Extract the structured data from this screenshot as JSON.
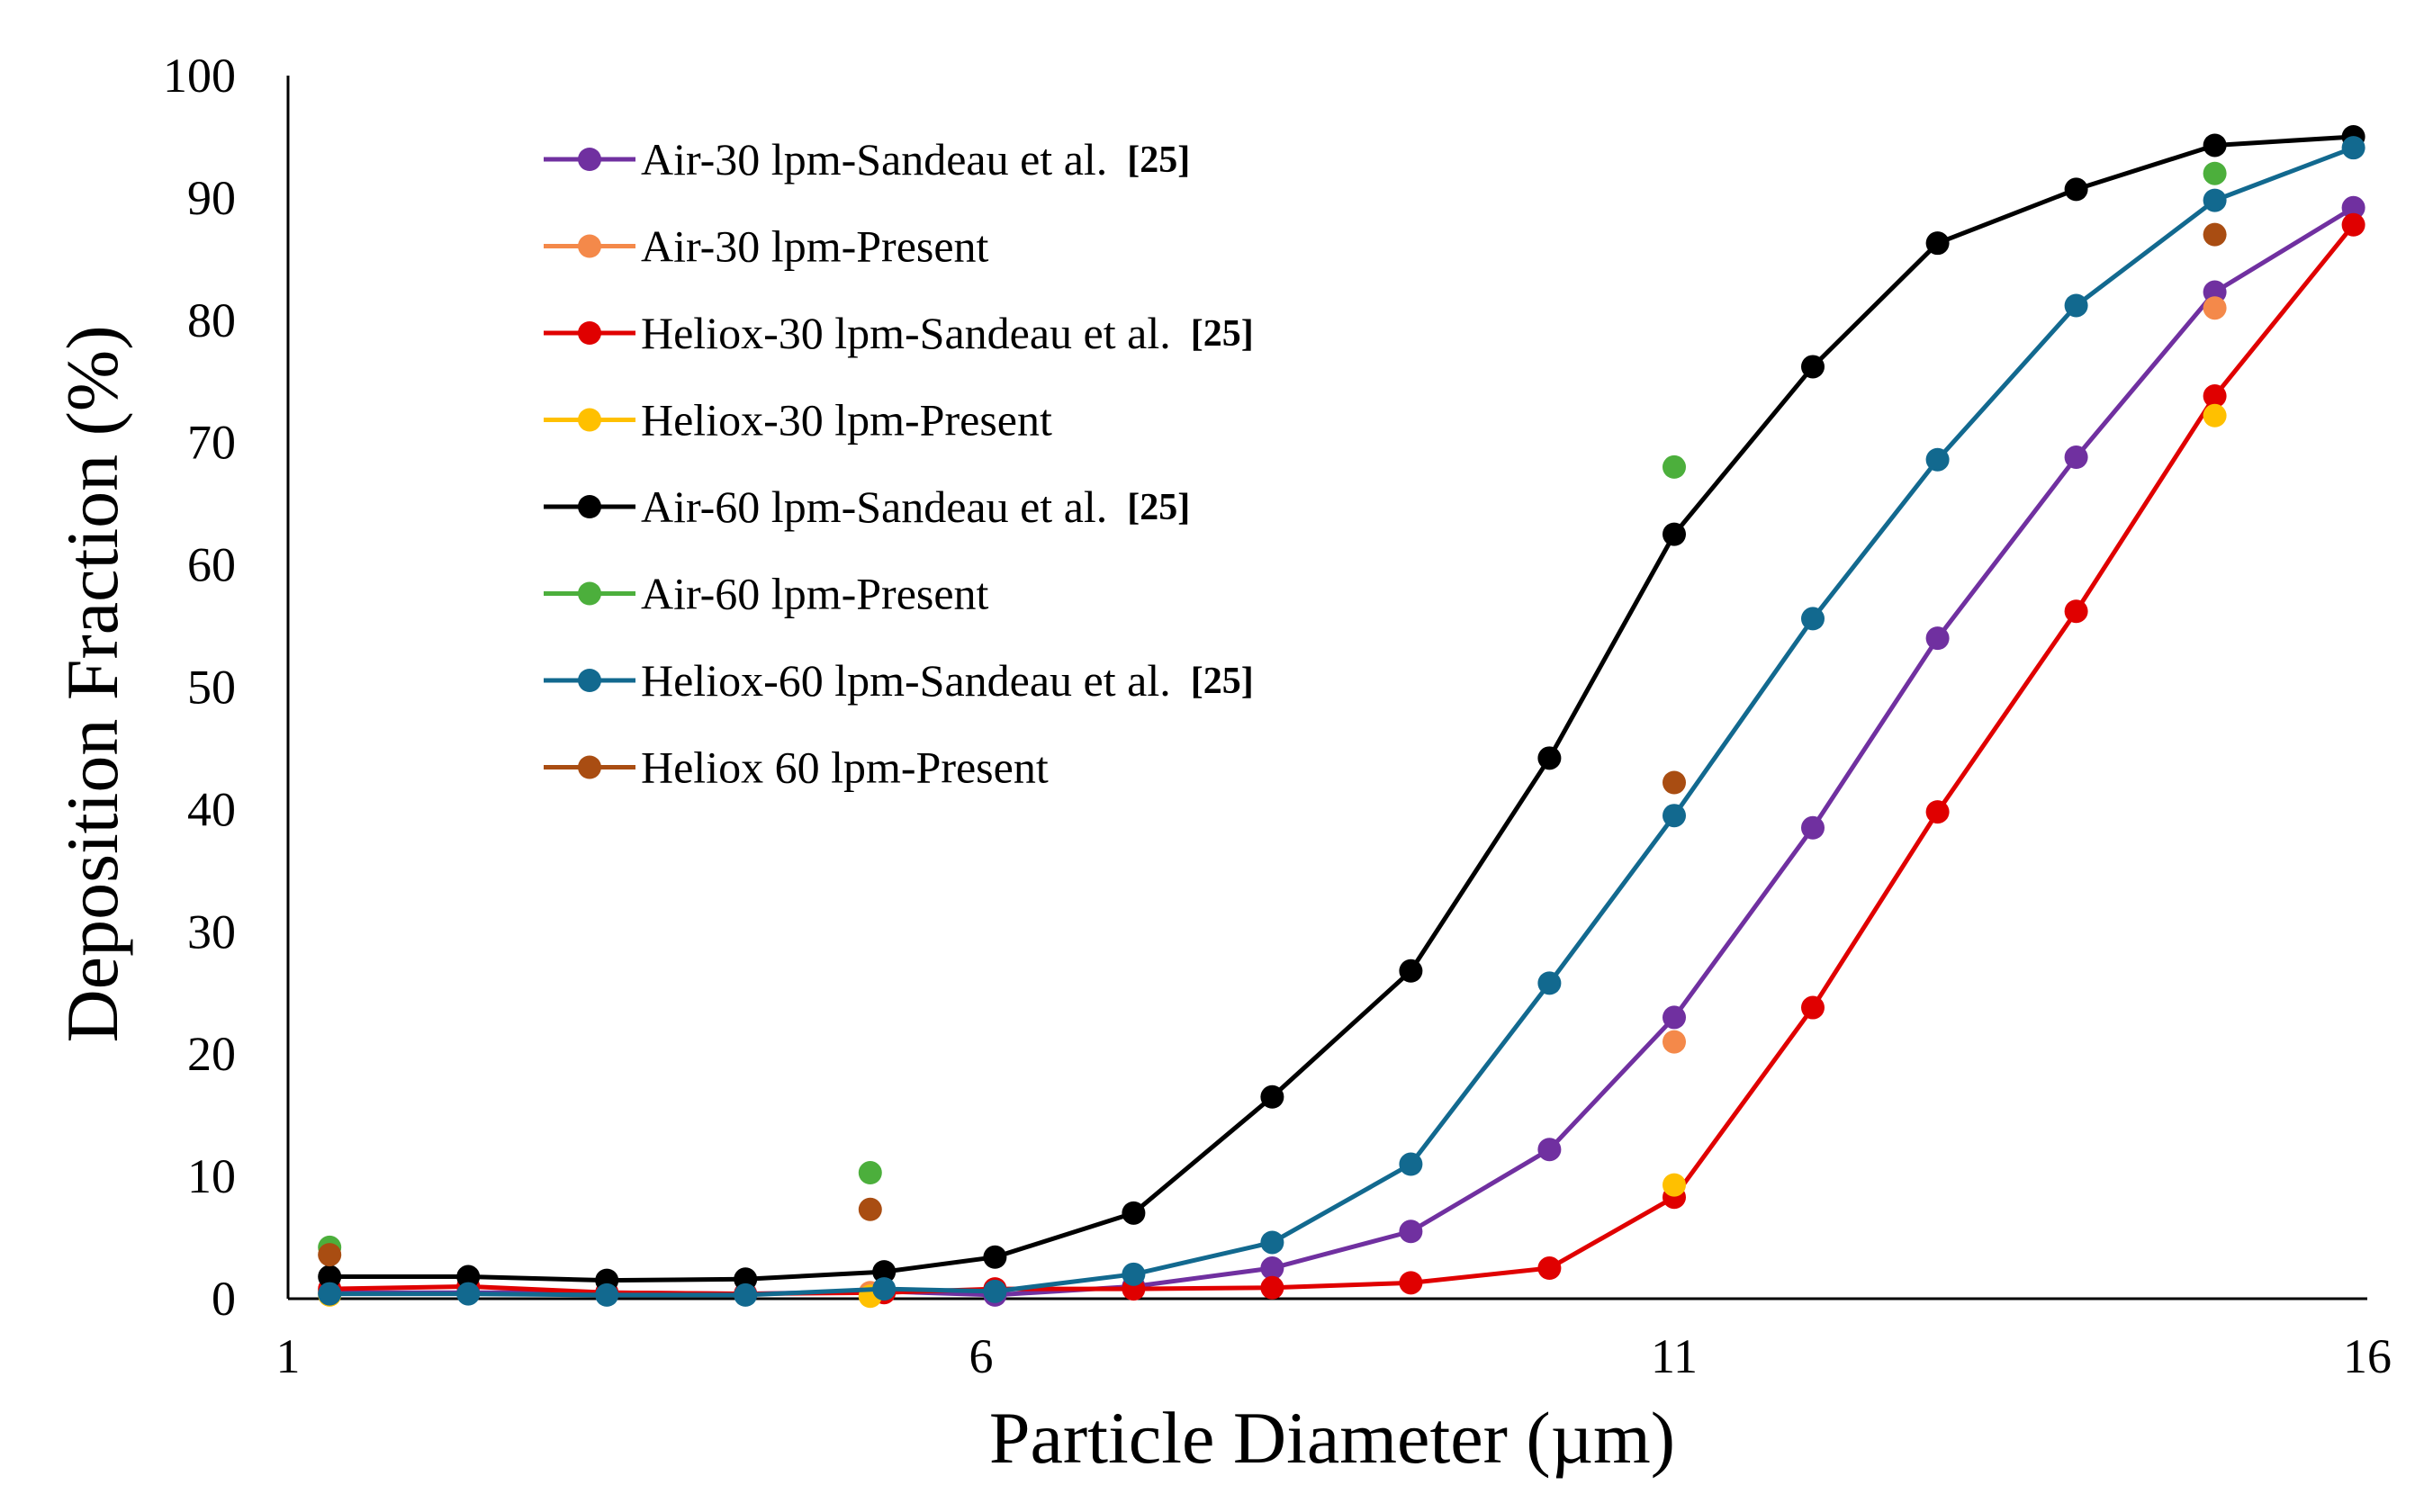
{
  "chart_data": {
    "type": "line",
    "title": "",
    "xlabel": "Particle Diameter (µm)",
    "ylabel": "Deposition Fraction (%)",
    "xlim": [
      1,
      16
    ],
    "ylim": [
      0,
      100
    ],
    "xticks": [
      1,
      6,
      11,
      16
    ],
    "yticks": [
      0,
      10,
      20,
      30,
      40,
      50,
      60,
      70,
      80,
      90,
      100
    ],
    "legend_position": "upper-left",
    "series": [
      {
        "name": "Air-30 lpm-Sandeau et al.",
        "ref": "[25]",
        "color": "#7030a0",
        "style": "line-marker",
        "x": [
          1.3,
          2.3,
          3.3,
          4.3,
          5.3,
          6.1,
          7.1,
          8.1,
          9.1,
          10.1,
          11.0,
          12.0,
          12.9,
          13.9,
          14.9,
          15.9
        ],
        "y": [
          0.5,
          0.5,
          0.5,
          0.4,
          0.6,
          0.3,
          1.0,
          2.5,
          5.5,
          12.2,
          23.0,
          38.5,
          54.0,
          68.8,
          82.3,
          89.2
        ]
      },
      {
        "name": "Air-30 lpm-Present",
        "ref": "",
        "color": "#f4894a",
        "style": "marker",
        "x": [
          1.3,
          5.2,
          11.0,
          14.9
        ],
        "y": [
          0.6,
          0.5,
          21.0,
          81.0
        ]
      },
      {
        "name": "Heliox-30 lpm-Sandeau et al.",
        "ref": "[25]",
        "color": "#e00000",
        "style": "line-marker",
        "x": [
          1.3,
          2.3,
          3.3,
          4.3,
          5.3,
          6.1,
          7.1,
          8.1,
          9.1,
          10.1,
          11.0,
          12.0,
          12.9,
          13.9,
          14.9,
          15.9
        ],
        "y": [
          0.8,
          1.0,
          0.5,
          0.4,
          0.5,
          0.8,
          0.8,
          0.9,
          1.3,
          2.5,
          8.3,
          23.8,
          39.8,
          56.2,
          73.8,
          87.8
        ]
      },
      {
        "name": "Heliox-30 lpm-Present",
        "ref": "",
        "color": "#ffc000",
        "style": "marker",
        "x": [
          1.3,
          5.2,
          11.0,
          14.9
        ],
        "y": [
          0.3,
          0.2,
          9.3,
          72.2
        ]
      },
      {
        "name": "Air-60 lpm-Sandeau et al.",
        "ref": "[25]",
        "color": "#000000",
        "style": "line-marker",
        "x": [
          1.3,
          2.3,
          3.3,
          4.3,
          5.3,
          6.1,
          7.1,
          8.1,
          9.1,
          10.1,
          11.0,
          12.0,
          12.9,
          13.9,
          14.9,
          15.9
        ],
        "y": [
          1.8,
          1.8,
          1.5,
          1.6,
          2.2,
          3.4,
          7.0,
          16.5,
          26.8,
          44.2,
          62.5,
          76.2,
          86.3,
          90.7,
          94.3,
          95.0
        ]
      },
      {
        "name": "Air-60 lpm-Present",
        "ref": "",
        "color": "#4caf3c",
        "style": "marker",
        "x": [
          1.3,
          5.2,
          11.0,
          14.9
        ],
        "y": [
          4.2,
          10.3,
          68.0,
          92.0
        ]
      },
      {
        "name": "Heliox-60 lpm-Sandeau et al.",
        "ref": "[25]",
        "color": "#12698f",
        "style": "line-marker",
        "x": [
          1.3,
          2.3,
          3.3,
          4.3,
          5.3,
          6.1,
          7.1,
          8.1,
          9.1,
          10.1,
          11.0,
          12.0,
          12.9,
          13.9,
          14.9,
          15.9
        ],
        "y": [
          0.4,
          0.4,
          0.3,
          0.3,
          0.8,
          0.6,
          2.0,
          4.6,
          11.0,
          25.8,
          39.5,
          55.6,
          68.6,
          81.2,
          89.8,
          94.1
        ]
      },
      {
        "name": "Heliox 60 lpm-Present",
        "ref": "",
        "color": "#a94d12",
        "style": "marker",
        "x": [
          1.3,
          5.2,
          11.0,
          14.9
        ],
        "y": [
          3.6,
          7.3,
          42.2,
          87.0
        ]
      }
    ]
  }
}
